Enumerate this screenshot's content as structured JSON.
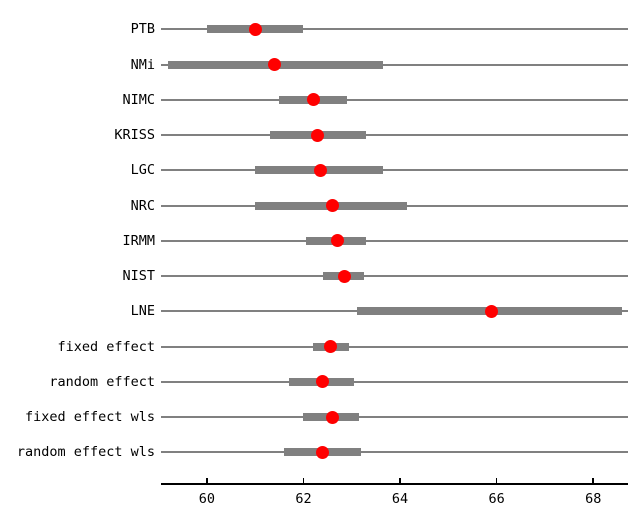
{
  "chart_data": {
    "type": "scatter",
    "subtype": "dot-and-interval-forest-plot",
    "title": "",
    "xlabel": "",
    "ylabel": "",
    "xlim": [
      59.05,
      68.72
    ],
    "xticks": [
      60,
      62,
      64,
      66,
      68
    ],
    "grid": false,
    "legend": "none",
    "rows": [
      {
        "label": "PTB",
        "value": 61.0,
        "lo": 60.0,
        "hi": 62.0
      },
      {
        "label": "NMi",
        "value": 61.4,
        "lo": 59.2,
        "hi": 63.65
      },
      {
        "label": "NIMC",
        "value": 62.2,
        "lo": 61.5,
        "hi": 62.9
      },
      {
        "label": "KRISS",
        "value": 62.3,
        "lo": 61.3,
        "hi": 63.3
      },
      {
        "label": "LGC",
        "value": 62.35,
        "lo": 61.0,
        "hi": 63.65
      },
      {
        "label": "NRC",
        "value": 62.6,
        "lo": 61.0,
        "hi": 64.15
      },
      {
        "label": "IRMM",
        "value": 62.7,
        "lo": 62.05,
        "hi": 63.3
      },
      {
        "label": "NIST",
        "value": 62.85,
        "lo": 62.4,
        "hi": 63.25
      },
      {
        "label": "LNE",
        "value": 65.9,
        "lo": 63.1,
        "hi": 68.6
      },
      {
        "label": "fixed effect",
        "value": 62.55,
        "lo": 62.2,
        "hi": 62.95
      },
      {
        "label": "random effect",
        "value": 62.4,
        "lo": 61.7,
        "hi": 63.05
      },
      {
        "label": "fixed effect wls",
        "value": 62.6,
        "lo": 62.0,
        "hi": 63.15
      },
      {
        "label": "random effect wls",
        "value": 62.4,
        "lo": 61.6,
        "hi": 63.2
      }
    ],
    "colors": {
      "dot": "#ff0000",
      "bar": "#808080",
      "line": "#808080",
      "axis": "#000000",
      "background": "#ffffff"
    }
  }
}
